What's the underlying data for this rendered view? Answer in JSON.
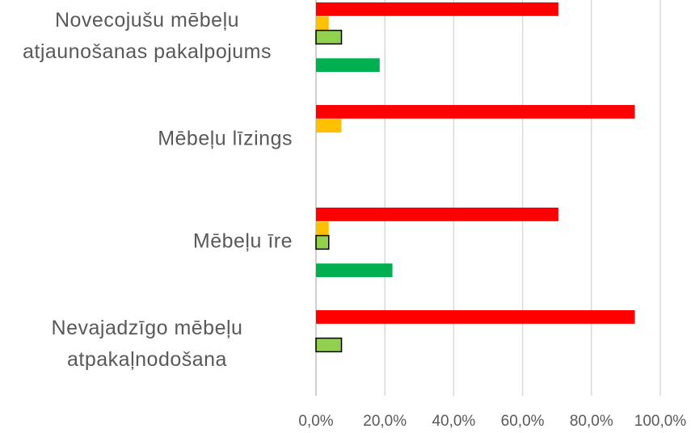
{
  "chart_data": {
    "type": "bar",
    "orientation": "horizontal",
    "categories": [
      "Novecojušu mēbeļu atjaunošanas pakalpojums",
      "Mēbeļu līzings",
      "Mēbeļu īre",
      "Nevajadzīgo mēbeļu atpakaļnodošana"
    ],
    "series": [
      {
        "color": "#ff0000",
        "values": [
          70.4,
          92.6,
          70.4,
          92.6
        ]
      },
      {
        "color": "#ffc000",
        "values": [
          3.7,
          7.4,
          3.7,
          0
        ]
      },
      {
        "color": "#92d050",
        "outline": "#000000",
        "values": [
          7.4,
          0,
          3.7,
          7.4
        ]
      },
      {
        "color": "#00b050",
        "values": [
          18.5,
          0,
          22.2,
          0
        ]
      }
    ],
    "xlim": [
      0,
      100
    ],
    "xticks": [
      {
        "value": 0,
        "label": "0,0%"
      },
      {
        "value": 20,
        "label": "20,0%"
      },
      {
        "value": 40,
        "label": "40,0%"
      },
      {
        "value": 60,
        "label": "60,0%"
      },
      {
        "value": 80,
        "label": "80,0%"
      },
      {
        "value": 100,
        "label": "100,0%"
      }
    ],
    "grid": true
  }
}
